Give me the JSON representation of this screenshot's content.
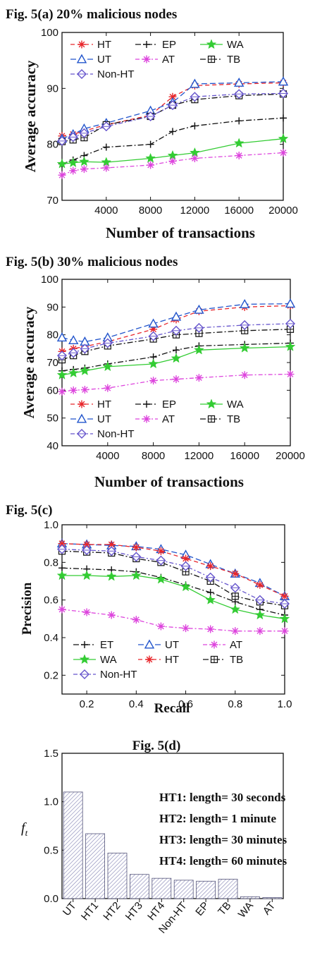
{
  "chart_data": [
    {
      "type": "line",
      "title": "Fig. 5(a)   20% malicious nodes",
      "xlabel": "Number of transactions",
      "ylabel": "Average accuracy",
      "xlim": [
        0,
        20000
      ],
      "ylim": [
        70,
        100
      ],
      "xticks": [
        4000,
        8000,
        12000,
        16000,
        20000
      ],
      "yticks": [
        70,
        80,
        90,
        100
      ],
      "legend": {
        "position": "top-left",
        "columns": 3
      },
      "x": [
        0,
        1000,
        2000,
        4000,
        8000,
        10000,
        12000,
        16000,
        20000
      ],
      "series": [
        {
          "name": "HT",
          "color": "#e8262b",
          "dash": "6,4",
          "marker": "asterisk",
          "values": [
            81.5,
            81.8,
            82.4,
            83.5,
            85.2,
            88.5,
            90.5,
            90.8,
            91.0
          ]
        },
        {
          "name": "EP",
          "color": "#111111",
          "dash": "8,3,2,3",
          "marker": "plus",
          "values": [
            76.5,
            77.2,
            78.0,
            79.5,
            80.0,
            82.3,
            83.3,
            84.2,
            84.7
          ]
        },
        {
          "name": "WA",
          "color": "#33cc33",
          "dash": "",
          "marker": "star",
          "values": [
            76.5,
            76.7,
            76.9,
            76.8,
            77.5,
            78.0,
            78.5,
            80.2,
            81.0
          ]
        },
        {
          "name": "UT",
          "color": "#2255cc",
          "dash": "8,4",
          "marker": "triangle",
          "values": [
            81.0,
            81.8,
            82.8,
            83.8,
            86.0,
            87.5,
            90.8,
            91.0,
            91.2
          ]
        },
        {
          "name": "AT",
          "color": "#dd44dd",
          "dash": "6,3,2,3",
          "marker": "asterisk",
          "values": [
            74.5,
            75.3,
            75.6,
            75.8,
            76.3,
            77.0,
            77.5,
            78.0,
            78.5
          ]
        },
        {
          "name": "TB",
          "color": "#111111",
          "dash": "8,3,2,3",
          "marker": "boxplus",
          "values": [
            80.5,
            80.8,
            81.2,
            83.5,
            85.0,
            87.0,
            88.0,
            88.7,
            89.0
          ]
        },
        {
          "name": "Non-HT",
          "color": "#6655cc",
          "dash": "6,3,2,3",
          "marker": "diamond",
          "values": [
            80.6,
            81.3,
            82.0,
            83.2,
            85.0,
            87.0,
            88.5,
            89.0,
            89.1
          ]
        }
      ]
    },
    {
      "type": "line",
      "title": "Fig. 5(b)      30% malicious nodes",
      "xlabel": "Number of transactions",
      "ylabel": "Average accuracy",
      "xlim": [
        0,
        20000
      ],
      "ylim": [
        40,
        100
      ],
      "xticks": [
        4000,
        8000,
        12000,
        16000,
        20000
      ],
      "yticks": [
        40,
        50,
        60,
        70,
        80,
        90,
        100
      ],
      "legend": {
        "position": "bottom-left",
        "columns": 3
      },
      "x": [
        0,
        1000,
        2000,
        4000,
        8000,
        10000,
        12000,
        16000,
        20000
      ],
      "series": [
        {
          "name": "HT",
          "color": "#e8262b",
          "dash": "6,4",
          "marker": "asterisk",
          "values": [
            74.0,
            75.0,
            75.8,
            77.5,
            82.0,
            85.5,
            88.5,
            90.0,
            90.5
          ]
        },
        {
          "name": "EP",
          "color": "#111111",
          "dash": "8,3,2,3",
          "marker": "plus",
          "values": [
            67.0,
            67.5,
            68.0,
            69.5,
            72.0,
            74.5,
            76.0,
            76.5,
            77.0
          ]
        },
        {
          "name": "WA",
          "color": "#33cc33",
          "dash": "",
          "marker": "star",
          "values": [
            65.5,
            66.2,
            67.0,
            68.5,
            69.5,
            71.5,
            74.5,
            75.2,
            75.7
          ]
        },
        {
          "name": "UT",
          "color": "#2255cc",
          "dash": "8,4",
          "marker": "triangle",
          "values": [
            79.0,
            78.0,
            77.5,
            79.0,
            84.0,
            86.5,
            89.0,
            91.0,
            91.2
          ]
        },
        {
          "name": "AT",
          "color": "#dd44dd",
          "dash": "6,3,2,3",
          "marker": "asterisk",
          "values": [
            59.5,
            60.0,
            60.2,
            60.8,
            63.5,
            64.0,
            64.5,
            65.5,
            65.8
          ]
        },
        {
          "name": "TB",
          "color": "#111111",
          "dash": "8,3,2,3",
          "marker": "boxplus",
          "values": [
            71.0,
            72.5,
            74.0,
            76.0,
            78.5,
            80.0,
            80.5,
            81.5,
            82.0
          ]
        },
        {
          "name": "Non-HT",
          "color": "#6655cc",
          "dash": "6,3,2,3",
          "marker": "diamond",
          "values": [
            72.5,
            73.5,
            75.0,
            77.0,
            79.5,
            81.5,
            82.5,
            83.5,
            84.0
          ]
        }
      ]
    },
    {
      "type": "line",
      "title": "Fig. 5(c)",
      "xlabel": "Recall",
      "ylabel": "Precision",
      "xlim": [
        0.1,
        1.0
      ],
      "ylim": [
        0.1,
        1.0
      ],
      "xticks": [
        0.2,
        0.4,
        0.6,
        0.8,
        1.0
      ],
      "yticks": [
        0.2,
        0.4,
        0.6,
        0.8,
        1.0
      ],
      "legend": {
        "position": "bottom-left",
        "columns": 3
      },
      "x": [
        0.1,
        0.2,
        0.3,
        0.4,
        0.5,
        0.6,
        0.7,
        0.8,
        0.9,
        1.0
      ],
      "series": [
        {
          "name": "ET",
          "color": "#111111",
          "dash": "8,3,2,3",
          "marker": "plus",
          "values": [
            0.77,
            0.765,
            0.76,
            0.75,
            0.72,
            0.68,
            0.64,
            0.59,
            0.55,
            0.52
          ]
        },
        {
          "name": "UT",
          "color": "#2255cc",
          "dash": "8,4",
          "marker": "triangle",
          "values": [
            0.9,
            0.895,
            0.89,
            0.885,
            0.87,
            0.84,
            0.79,
            0.74,
            0.69,
            0.62
          ]
        },
        {
          "name": "AT",
          "color": "#dd44dd",
          "dash": "6,3,2,3",
          "marker": "asterisk",
          "values": [
            0.55,
            0.535,
            0.52,
            0.495,
            0.46,
            0.45,
            0.445,
            0.435,
            0.435,
            0.435
          ]
        },
        {
          "name": "WA",
          "color": "#33cc33",
          "dash": "",
          "marker": "star",
          "values": [
            0.73,
            0.73,
            0.725,
            0.73,
            0.71,
            0.67,
            0.6,
            0.55,
            0.52,
            0.5
          ]
        },
        {
          "name": "HT",
          "color": "#e8262b",
          "dash": "6,4",
          "marker": "asterisk",
          "values": [
            0.9,
            0.895,
            0.895,
            0.88,
            0.86,
            0.82,
            0.78,
            0.74,
            0.68,
            0.62
          ]
        },
        {
          "name": "TB",
          "color": "#111111",
          "dash": "8,3,2,3",
          "marker": "boxplus",
          "values": [
            0.86,
            0.855,
            0.85,
            0.82,
            0.8,
            0.75,
            0.7,
            0.62,
            0.59,
            0.57
          ]
        },
        {
          "name": "Non-HT",
          "color": "#6655cc",
          "dash": "6,3,2,3",
          "marker": "diamond",
          "values": [
            0.87,
            0.865,
            0.86,
            0.83,
            0.81,
            0.78,
            0.72,
            0.665,
            0.6,
            0.58
          ]
        }
      ]
    },
    {
      "type": "bar",
      "title": "Fig. 5(d)",
      "ylabel": "f",
      "ylabel_sub": "t",
      "ylim": [
        0,
        1.5
      ],
      "yticks": [
        0.0,
        0.5,
        1.0,
        1.5
      ],
      "categories": [
        "UT",
        "HT1",
        "HT2",
        "HT3",
        "HT4",
        "Non-HT",
        "EP",
        "TB",
        "WA",
        "AT"
      ],
      "values": [
        1.1,
        0.67,
        0.47,
        0.25,
        0.21,
        0.19,
        0.18,
        0.2,
        0.02,
        0.01
      ],
      "annotations": [
        "HT1: length= 30 seconds",
        "HT2: length= 1 minute",
        "HT3: length= 30 minutes",
        "HT4: length= 60 minutes"
      ]
    }
  ]
}
